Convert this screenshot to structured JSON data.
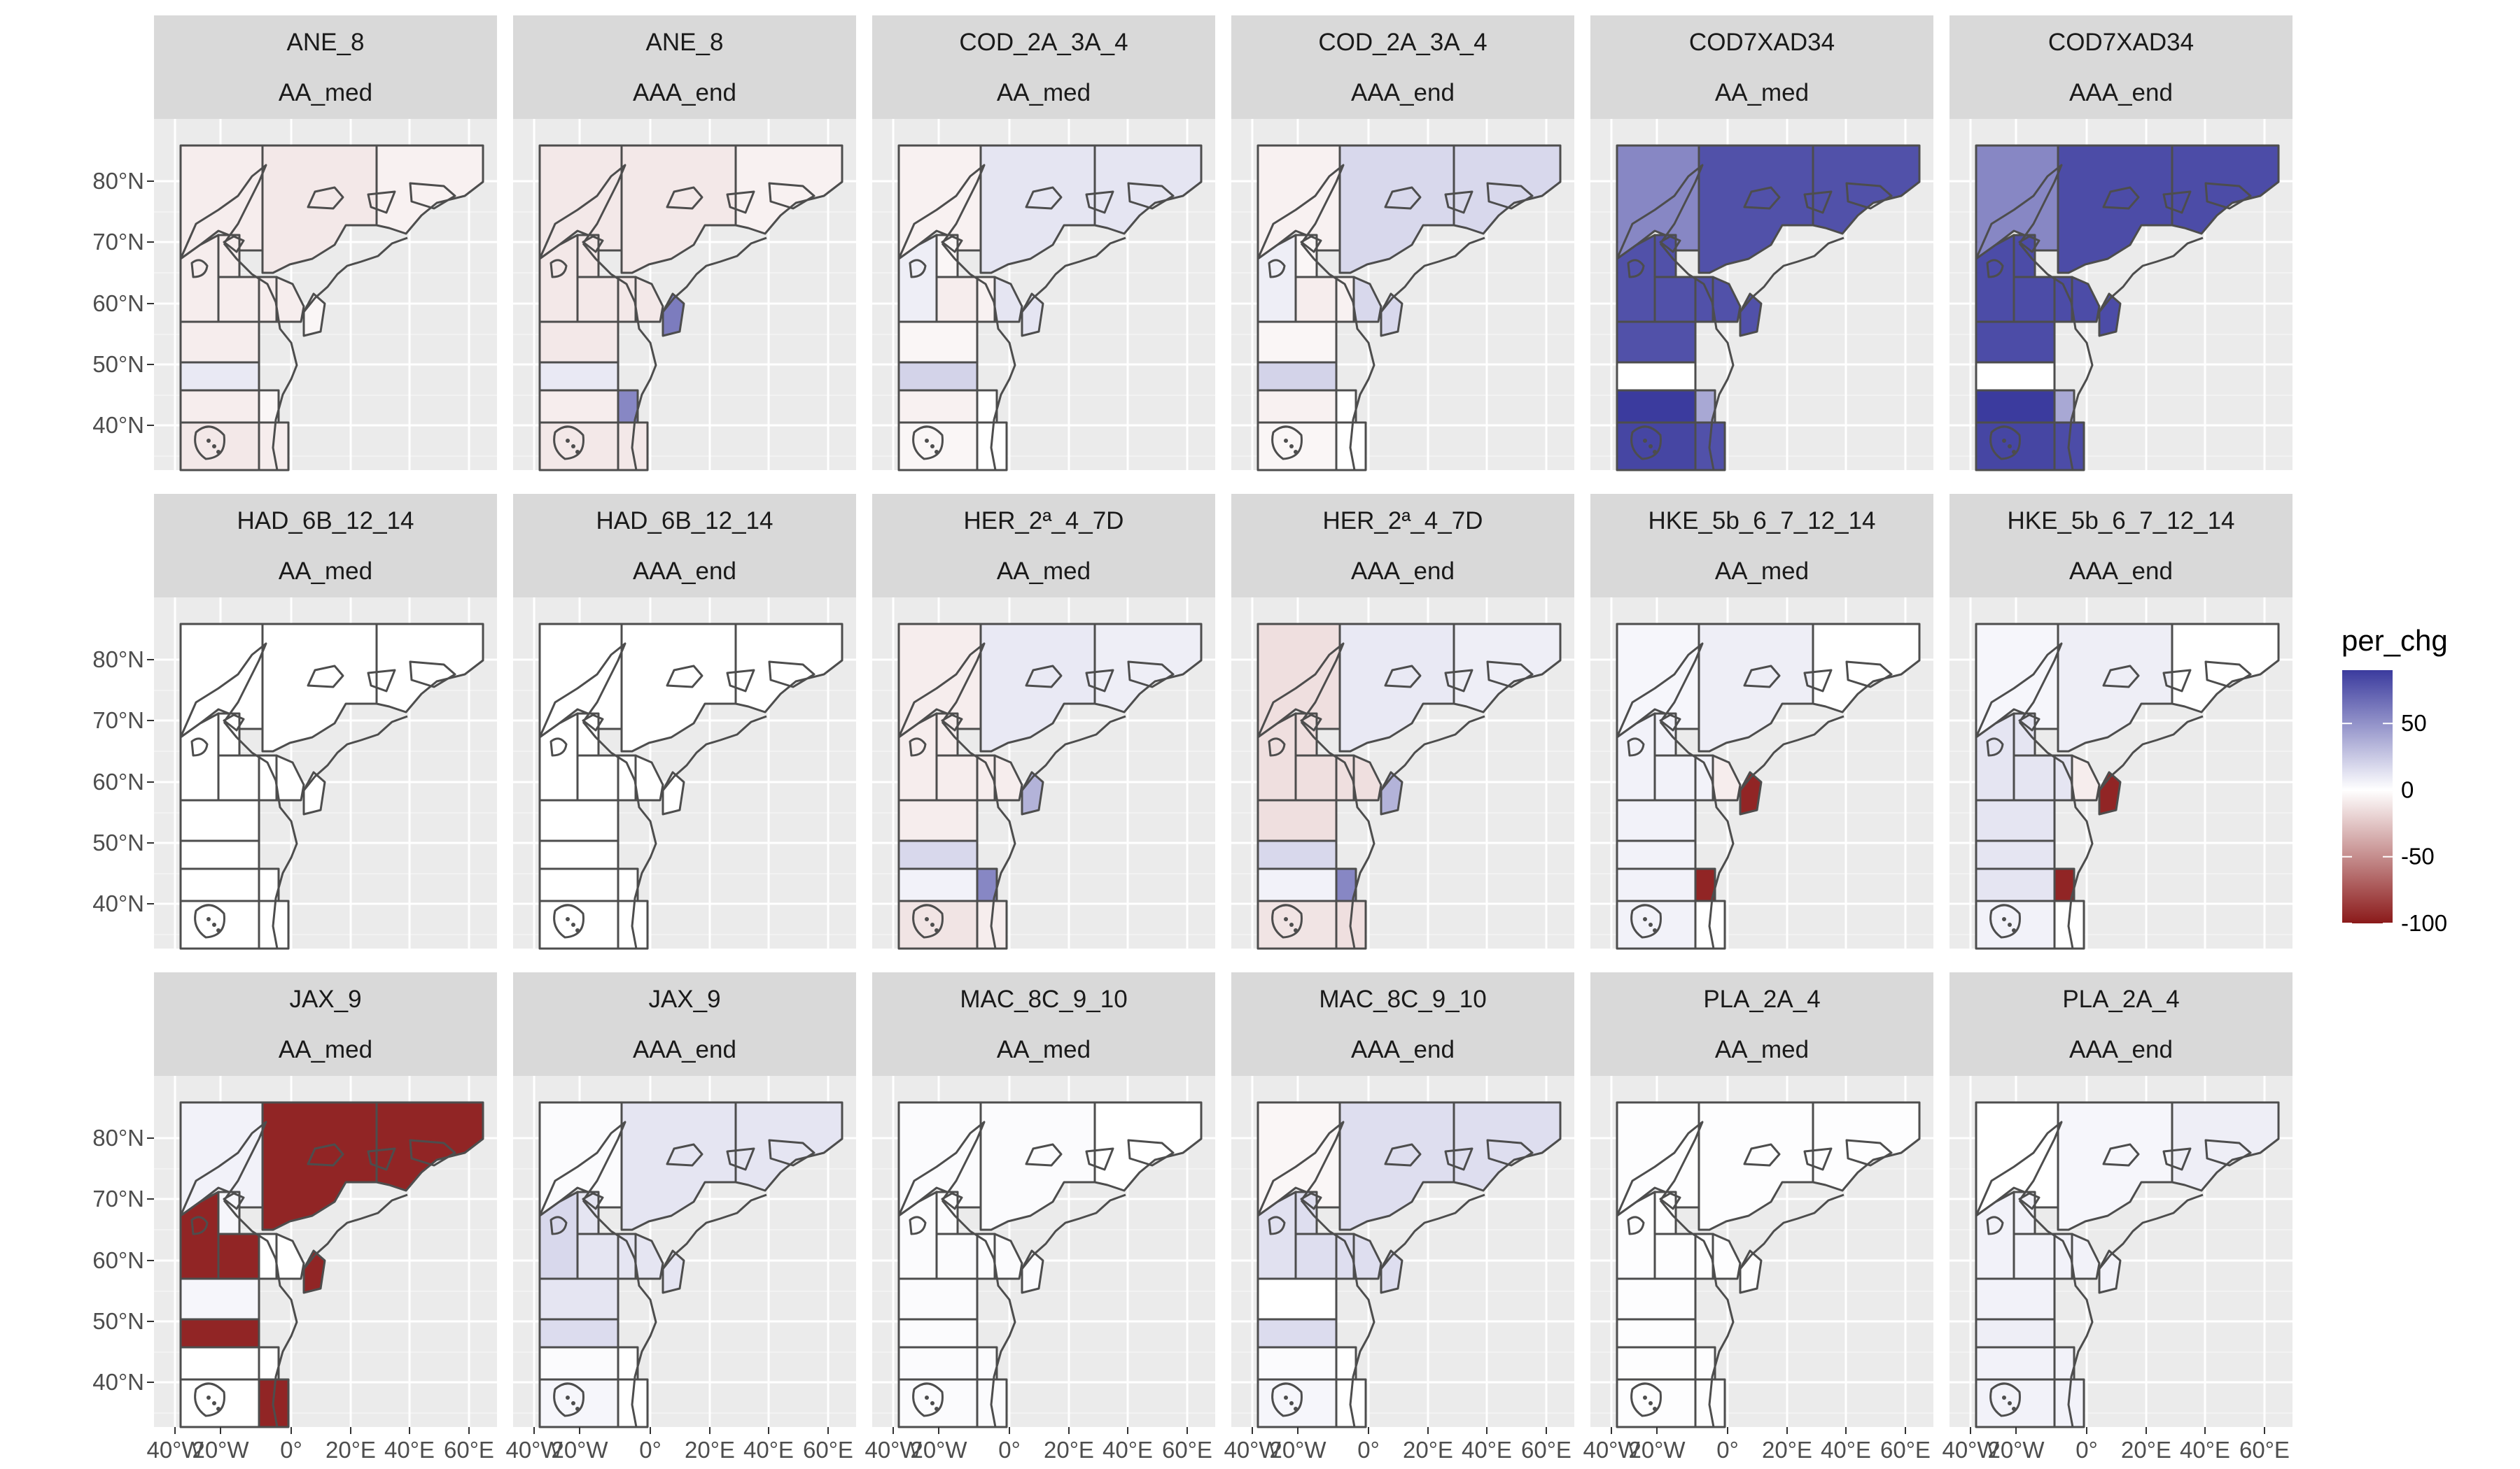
{
  "chart_data": {
    "type": "choropleth",
    "facet_rows": [
      "stock",
      "scenario"
    ],
    "y_ticks": [
      "80°N",
      "70°N",
      "60°N",
      "50°N",
      "40°N"
    ],
    "x_ticks": [
      "40°W",
      "20°W",
      "0°",
      "20°E",
      "40°E",
      "60°E"
    ],
    "legend": {
      "title": "per_chg",
      "ticks": [
        50,
        0,
        -50,
        -100
      ],
      "tick_labels": [
        "50",
        "0",
        "-50",
        "-100"
      ],
      "range": [
        -100,
        90
      ],
      "colors": {
        "low": "#8b1a1a",
        "mid": "#ffffff",
        "high": "#3b3b9e"
      },
      "placement": "right"
    },
    "facets": [
      {
        "stock": "ANE_8",
        "scenario": "AA_med",
        "pattern": "ane",
        "v": -8
      },
      {
        "stock": "ANE_8",
        "scenario": "AAA_end",
        "pattern": "ane",
        "v": -10
      },
      {
        "stock": "COD_2A_3A_4",
        "scenario": "AA_med",
        "pattern": "cod",
        "v": 12
      },
      {
        "stock": "COD_2A_3A_4",
        "scenario": "AAA_end",
        "pattern": "cod",
        "v": 18
      },
      {
        "stock": "COD7XAD34",
        "scenario": "AA_med",
        "pattern": "cod7",
        "v": 80
      },
      {
        "stock": "COD7XAD34",
        "scenario": "AAA_end",
        "pattern": "cod7",
        "v": 82
      },
      {
        "stock": "HAD_6B_12_14",
        "scenario": "AA_med",
        "pattern": "had",
        "v": 0
      },
      {
        "stock": "HAD_6B_12_14",
        "scenario": "AAA_end",
        "pattern": "had",
        "v": 0
      },
      {
        "stock": "HER_2ª_4_7D",
        "scenario": "AA_med",
        "pattern": "her",
        "v": -8
      },
      {
        "stock": "HER_2ª_4_7D",
        "scenario": "AAA_end",
        "pattern": "her",
        "v": -14
      },
      {
        "stock": "HKE_5b_6_7_12_14",
        "scenario": "AA_med",
        "pattern": "hke",
        "v": 6
      },
      {
        "stock": "HKE_5b_6_7_12_14",
        "scenario": "AAA_end",
        "pattern": "hke",
        "v": 12
      },
      {
        "stock": "JAX_9",
        "scenario": "AA_med",
        "pattern": "jax",
        "v": -95
      },
      {
        "stock": "JAX_9",
        "scenario": "AAA_end",
        "pattern": "jax2",
        "v": 12
      },
      {
        "stock": "MAC_8C_9_10",
        "scenario": "AA_med",
        "pattern": "mac",
        "v": 2
      },
      {
        "stock": "MAC_8C_9_10",
        "scenario": "AAA_end",
        "pattern": "mac2",
        "v": 15
      },
      {
        "stock": "PLA_2A_4",
        "scenario": "AA_med",
        "pattern": "pla",
        "v": 1
      },
      {
        "stock": "PLA_2A_4",
        "scenario": "AAA_end",
        "pattern": "pla2",
        "v": 6
      }
    ]
  }
}
